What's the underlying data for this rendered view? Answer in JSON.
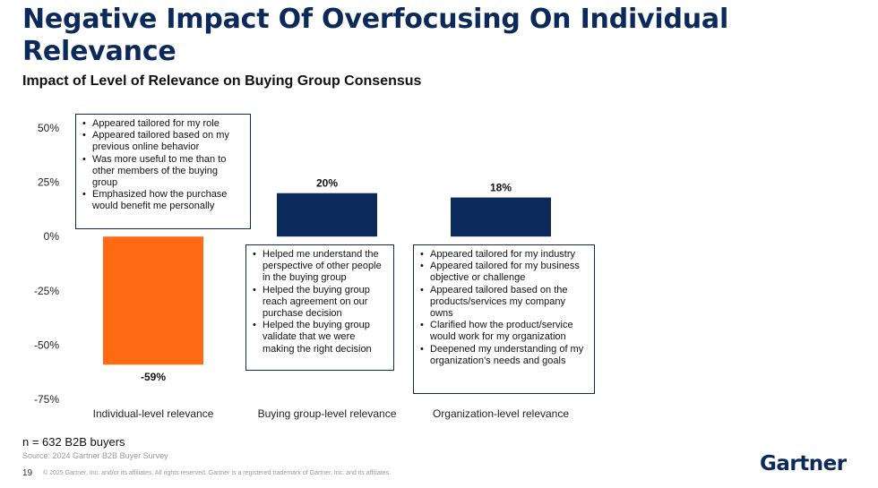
{
  "title": "Negative Impact Of Overfocusing On Individual Relevance",
  "subtitle": "Impact of Level of Relevance on Buying Group Consensus",
  "chart_data": {
    "type": "bar",
    "title": "Impact of Level of Relevance on Buying Group Consensus",
    "categories": [
      "Individual-level relevance",
      "Buying group-level relevance",
      "Organization-level relevance"
    ],
    "values": [
      -59,
      20,
      18
    ],
    "value_labels": [
      "-59%",
      "20%",
      "18%"
    ],
    "colors": [
      "#ff6a13",
      "#0b2a5b",
      "#0b2a5b"
    ],
    "ylim": [
      -75,
      50
    ],
    "yticks": [
      50,
      25,
      0,
      -25,
      -50,
      -75
    ],
    "ytick_labels": [
      "50%",
      "25%",
      "0%",
      "-25%",
      "-50%",
      "-75%"
    ],
    "xlabel": "",
    "ylabel": "",
    "grid": false
  },
  "callouts": [
    {
      "name": "individual-callout",
      "items": [
        "Appeared tailored for my role",
        "Appeared tailored based on my previous online behavior",
        "Was more useful to me than to other members of the buying group",
        "Emphasized how the purchase would benefit me personally"
      ]
    },
    {
      "name": "buying-group-callout",
      "items": [
        "Helped me understand the perspective of other people in the buying group",
        "Helped the buying group reach agreement on our purchase decision",
        "Helped the buying group validate that we were making the right decision"
      ]
    },
    {
      "name": "organization-callout",
      "items": [
        "Appeared tailored for my industry",
        "Appeared tailored for my business objective or challenge",
        "Appeared tailored based on the products/services my company owns",
        "Clarified how the product/service would work for my organization",
        "Deepened my understanding of my organization’s needs and goals"
      ]
    }
  ],
  "footer": {
    "note": "n = 632 B2B buyers",
    "source": "Source: 2024 Gartner B2B Buyer Survey",
    "page": "19",
    "copyright": "© 2025 Gartner, Inc. and/or its affiliates. All rights reserved. Gartner is a registered trademark of Gartner, Inc. and its affiliates.",
    "logo": "Gartner"
  }
}
